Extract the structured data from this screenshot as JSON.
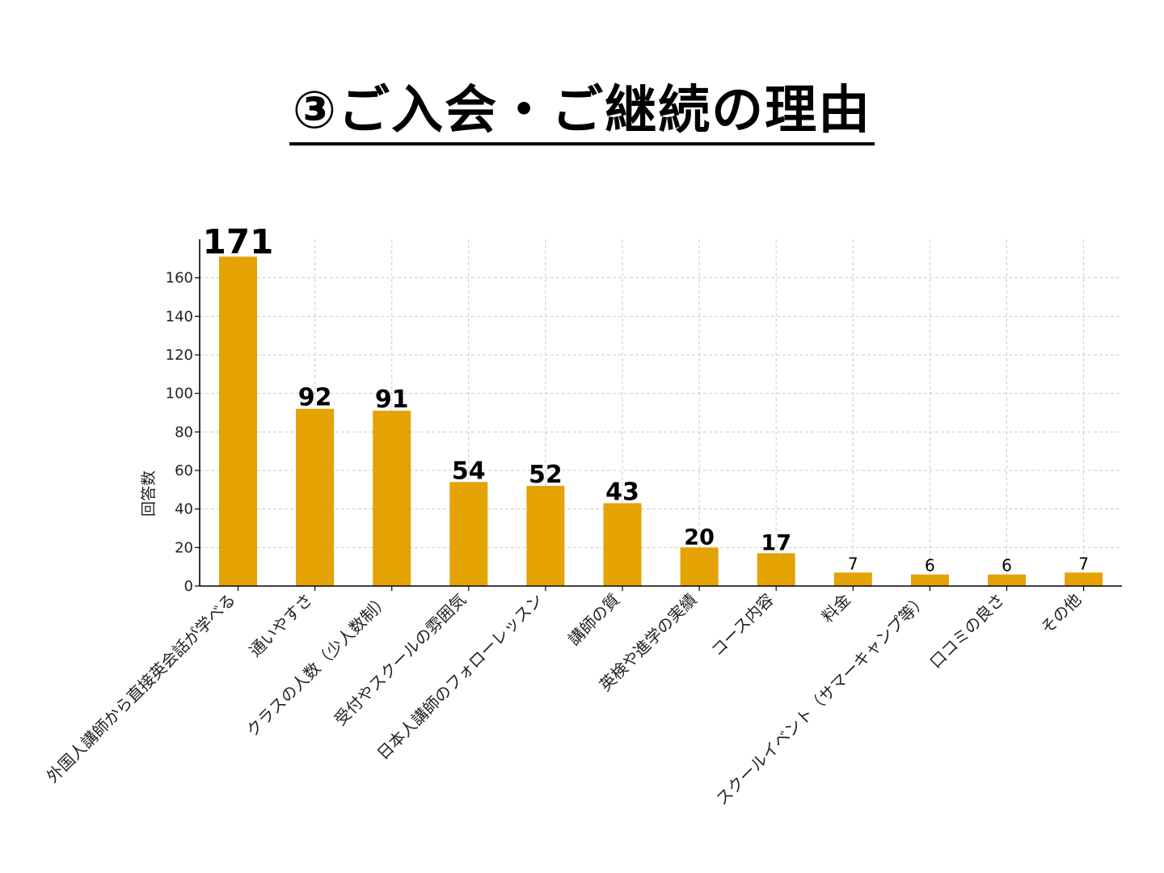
{
  "title": "③ご入会・ご継続の理由",
  "chart_data": {
    "type": "bar",
    "ylabel": "回答数",
    "xlabel": "",
    "ylim": [
      0,
      180
    ],
    "yticks": [
      0,
      20,
      40,
      60,
      80,
      100,
      120,
      140,
      160
    ],
    "grid": true,
    "bar_color": "#E5A203",
    "categories": [
      "外国人講師から直接英会話が学べる",
      "通いやすさ",
      "クラスの人数（少人数制）",
      "受付やスクールの雰囲気",
      "日本人講師のフォローレッスン",
      "講師の質",
      "英検や進学の実績",
      "コース内容",
      "料金",
      "スクールイベント（サマーキャンプ等）",
      "口コミの良さ",
      "その他"
    ],
    "values": [
      171,
      92,
      91,
      54,
      52,
      43,
      20,
      17,
      7,
      6,
      6,
      7
    ]
  }
}
